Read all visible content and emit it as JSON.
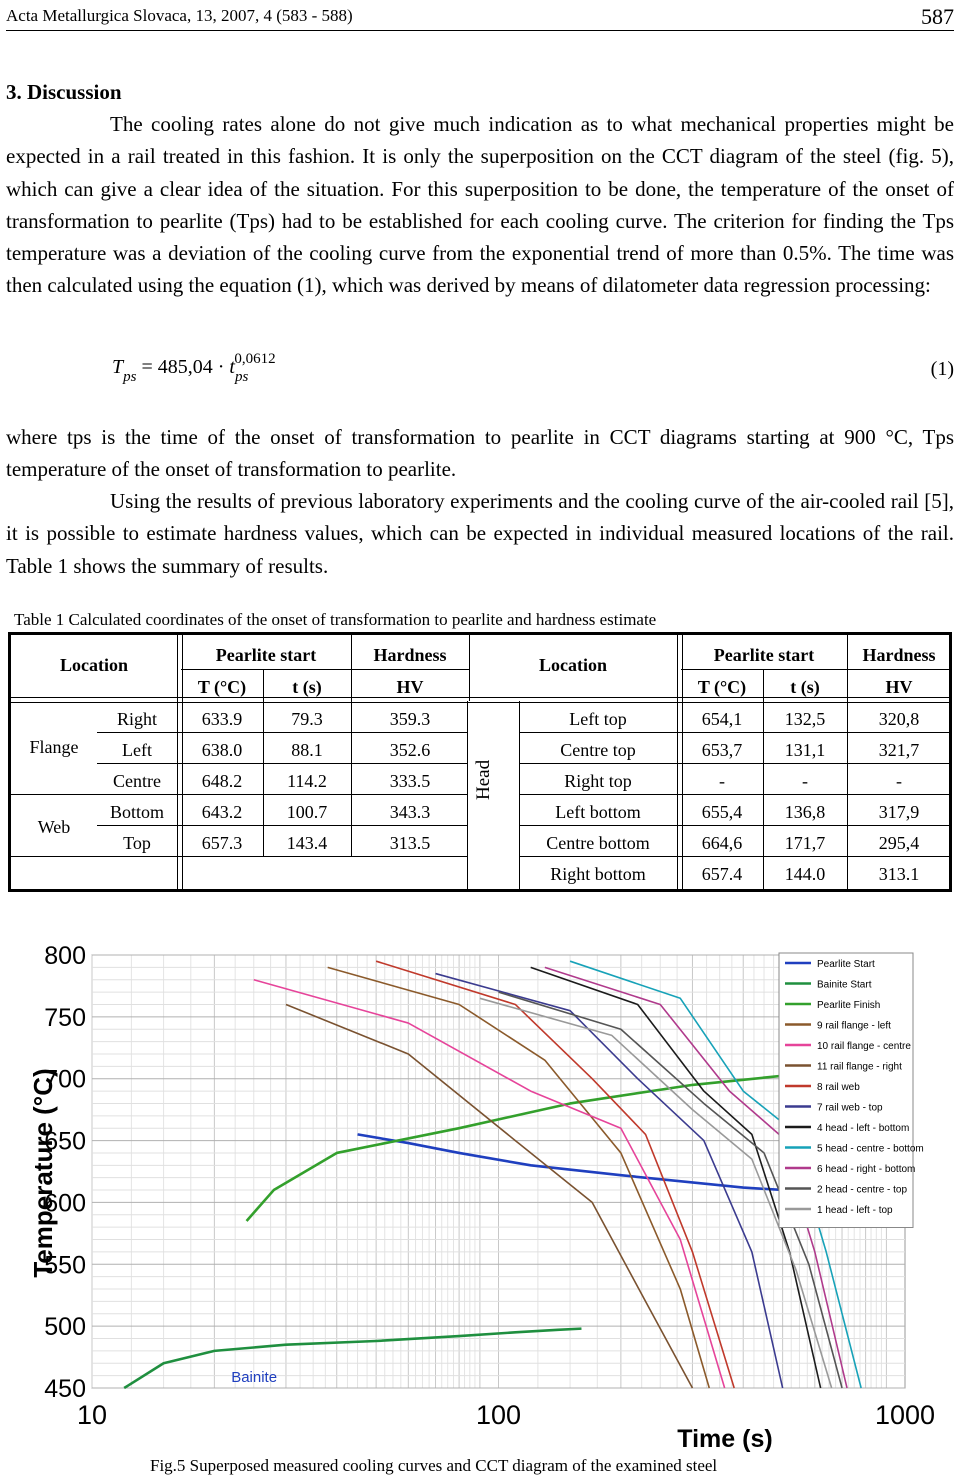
{
  "header": {
    "journal": "Acta Metallurgica Slovaca, 13, 2007, 4 (583 - 588)",
    "page": "587"
  },
  "section": {
    "title": "3. Discussion"
  },
  "paragraphs": {
    "p1": "The cooling rates alone do not give much indication as to what mechanical properties might be expected in a rail treated in this fashion. It is only the superposition on the CCT diagram of the steel (fig. 5), which can give a clear idea of the situation. For this superposition to be done, the temperature of the onset of transformation to pearlite (Tps) had to be established for each cooling curve. The criterion for finding the Tps temperature was a deviation of the cooling curve from the exponential trend of more than 0.5%. The time was then calculated using the equation (1), which was derived by means of dilatometer data regression processing:",
    "p2": "where tps is the time of the onset of transformation to pearlite in CCT diagrams starting at 900 °C, Tps temperature of the onset of transformation to pearlite.",
    "p3": "Using the results of previous laboratory experiments and the cooling curve of the air-cooled rail [5], it is possible to estimate hardness values, which can be expected in individual measured locations of the rail. Table 1 shows the summary of results."
  },
  "equation": {
    "lhs": "T",
    "lhs_sub": "ps",
    "mid": " = 485,04 · ",
    "t": "t",
    "t_sub": "ps",
    "exp": "0,0612",
    "number": "(1)"
  },
  "table": {
    "caption": "Table 1  Calculated coordinates of the onset of transformation to pearlite and hardness estimate",
    "headers": {
      "location": "Location",
      "pearlite": "Pearlite start",
      "hardness": "Hardness",
      "temp": "T (°C)",
      "time": "t (s)",
      "hv": "HV"
    },
    "groups": {
      "flange": "Flange",
      "web": "Web",
      "head": "Head"
    },
    "left_rows": [
      [
        "Right",
        "633.9",
        "79.3",
        "359.3"
      ],
      [
        "Left",
        "638.0",
        "88.1",
        "352.6"
      ],
      [
        "Centre",
        "648.2",
        "114.2",
        "333.5"
      ],
      [
        "Bottom",
        "643.2",
        "100.7",
        "343.3"
      ],
      [
        "Top",
        "657.3",
        "143.4",
        "313.5"
      ]
    ],
    "right_rows": [
      [
        "Left top",
        "654,1",
        "132,5",
        "320,8"
      ],
      [
        "Centre top",
        "653,7",
        "131,1",
        "321,7"
      ],
      [
        "Right top",
        "-",
        "-",
        "-"
      ],
      [
        "Left bottom",
        "655,4",
        "136,8",
        "317,9"
      ],
      [
        "Centre bottom",
        "664,6",
        "171,7",
        "295,4"
      ],
      [
        "Right bottom",
        "657.4",
        "144.0",
        "313.1"
      ]
    ]
  },
  "figure": {
    "caption": "Fig.5 Superposed measured cooling curves and CCT diagram of the examined steel",
    "bainite_label": "Bainite"
  },
  "chart_data": {
    "type": "line",
    "xlabel": "Time (s)",
    "ylabel": "Temperature (°C)",
    "xscale": "log",
    "xlim": [
      10,
      1000
    ],
    "ylim": [
      450,
      800
    ],
    "grid": true,
    "legend_position": "right",
    "x_ticks": [
      "10",
      "100",
      "1000"
    ],
    "y_ticks": [
      "800",
      "750",
      "700",
      "650",
      "600",
      "550",
      "500",
      "450"
    ],
    "legend": [
      {
        "name": "Pearlite Start",
        "color": "#1f3fbf"
      },
      {
        "name": "Bainite Start",
        "color": "#1f8f3f"
      },
      {
        "name": "Pearlite Finish",
        "color": "#33a02c"
      },
      {
        "name": "9 rail flange - left",
        "color": "#8b5a2b"
      },
      {
        "name": "10 rail flange - centre",
        "color": "#e6449a"
      },
      {
        "name": "11 rail flange - right",
        "color": "#7a5230"
      },
      {
        "name": "8 rail web",
        "color": "#c0392b"
      },
      {
        "name": "7 rail web - top",
        "color": "#3b3b8f"
      },
      {
        "name": "4 head - left - bottom",
        "color": "#1b1b1b"
      },
      {
        "name": "5 head - centre - bottom",
        "color": "#17a2b8"
      },
      {
        "name": "6 head - right - bottom",
        "color": "#b03a8c"
      },
      {
        "name": "2 head - centre - top",
        "color": "#555555"
      },
      {
        "name": "1 head - left - top",
        "color": "#999999"
      }
    ],
    "series": [
      {
        "name": "Pearlite Start",
        "x": [
          45,
          60,
          80,
          120,
          200,
          400,
          900
        ],
        "y": [
          655,
          648,
          640,
          630,
          622,
          612,
          605
        ]
      },
      {
        "name": "Bainite Start",
        "x": [
          12,
          15,
          20,
          30,
          50,
          80,
          110,
          140,
          160
        ],
        "y": [
          450,
          470,
          480,
          485,
          488,
          492,
          495,
          497,
          498
        ]
      },
      {
        "name": "Pearlite Finish",
        "x": [
          24,
          28,
          40,
          80,
          150,
          300,
          600,
          1000
        ],
        "y": [
          585,
          610,
          640,
          660,
          680,
          695,
          705,
          710
        ]
      },
      {
        "name": "9 rail flange - left",
        "x": [
          38,
          80,
          130,
          200,
          280,
          330
        ],
        "y": [
          790,
          760,
          715,
          640,
          530,
          450
        ]
      },
      {
        "name": "10 rail flange - centre",
        "x": [
          25,
          60,
          120,
          200,
          280,
          360
        ],
        "y": [
          780,
          745,
          690,
          660,
          570,
          450
        ]
      },
      {
        "name": "11 rail flange - right",
        "x": [
          30,
          60,
          110,
          170,
          230,
          300
        ],
        "y": [
          760,
          720,
          650,
          600,
          520,
          450
        ]
      },
      {
        "name": "8 rail web",
        "x": [
          50,
          110,
          170,
          230,
          300,
          380
        ],
        "y": [
          795,
          760,
          700,
          655,
          560,
          450
        ]
      },
      {
        "name": "7 rail web - top",
        "x": [
          70,
          150,
          220,
          320,
          420,
          500
        ],
        "y": [
          785,
          755,
          700,
          650,
          560,
          450
        ]
      },
      {
        "name": "4 head - left - bottom",
        "x": [
          120,
          220,
          320,
          420,
          520,
          620
        ],
        "y": [
          790,
          760,
          690,
          655,
          560,
          450
        ]
      },
      {
        "name": "5 head - centre - bottom",
        "x": [
          150,
          280,
          400,
          520,
          640,
          780
        ],
        "y": [
          795,
          765,
          690,
          660,
          560,
          450
        ]
      },
      {
        "name": "6 head - right - bottom",
        "x": [
          130,
          250,
          370,
          490,
          600,
          720
        ],
        "y": [
          790,
          760,
          690,
          655,
          560,
          450
        ]
      },
      {
        "name": "2 head - centre - top",
        "x": [
          100,
          200,
          320,
          450,
          580,
          700
        ],
        "y": [
          770,
          740,
          680,
          640,
          550,
          450
        ]
      },
      {
        "name": "1 head - left - top",
        "x": [
          90,
          190,
          300,
          420,
          540,
          660
        ],
        "y": [
          765,
          735,
          675,
          635,
          545,
          450
        ]
      }
    ]
  }
}
